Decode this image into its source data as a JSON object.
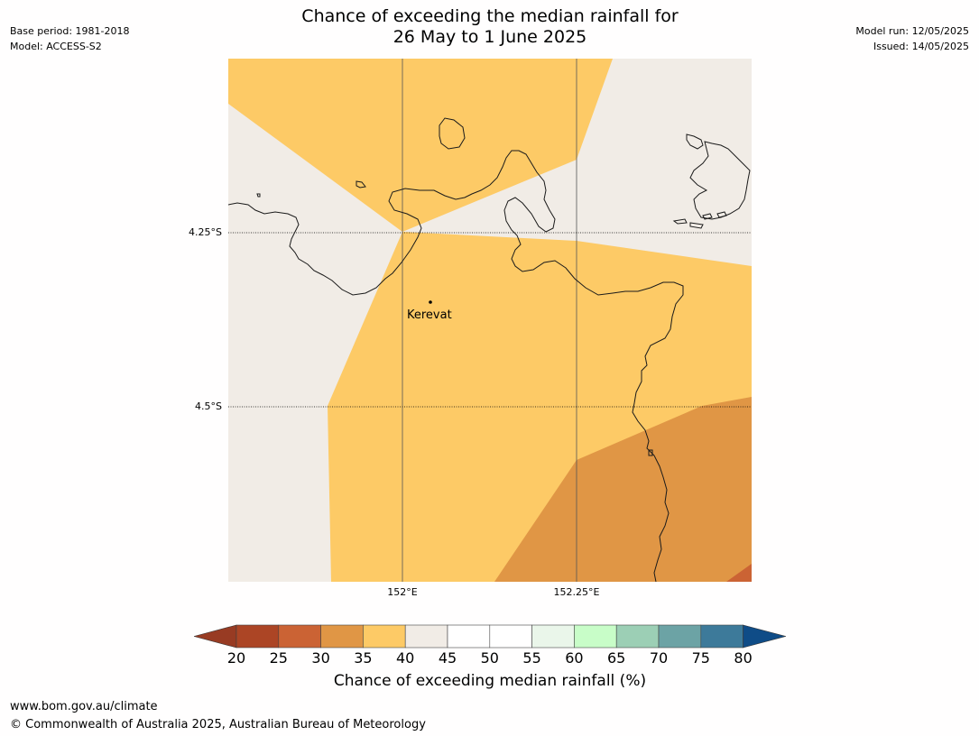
{
  "header": {
    "base_period": "Base period: 1981-2018",
    "model": "Model: ACCESS-S2",
    "model_run": "Model run: 12/05/2025",
    "issued": "Issued: 14/05/2025",
    "title_line1": "Chance of exceeding the median rainfall for",
    "title_line2": "26 May to 1 June 2025"
  },
  "map": {
    "lat_labels": [
      "4.25°S",
      "4.5°S"
    ],
    "lon_labels": [
      "152°E",
      "152.25°E"
    ],
    "place": "Kerevat",
    "colors": {
      "neutral": "#f1ece6",
      "yellow": "#fdca66",
      "orange": "#e09645",
      "dark_orange": "#cb6334",
      "coast": "#1a1a1a"
    }
  },
  "legend": {
    "ticks": [
      "20",
      "25",
      "30",
      "35",
      "40",
      "45",
      "50",
      "55",
      "60",
      "65",
      "70",
      "75",
      "80"
    ],
    "colors": [
      "#ac4525",
      "#cb6334",
      "#e09645",
      "#fdca66",
      "#f1ece6",
      "#ffffff",
      "#ffffff",
      "#eaf6ea",
      "#c8fdc8",
      "#9ccfb5",
      "#6ca3a5",
      "#3d7a9a"
    ],
    "low_arrow_color": "#983b23",
    "high_arrow_color": "#0f4c87",
    "title": "Chance of exceeding median rainfall (%)"
  },
  "footer": {
    "url": "www.bom.gov.au/climate",
    "copyright": "© Commonwealth of Australia 2025, Australian Bureau of Meteorology"
  }
}
